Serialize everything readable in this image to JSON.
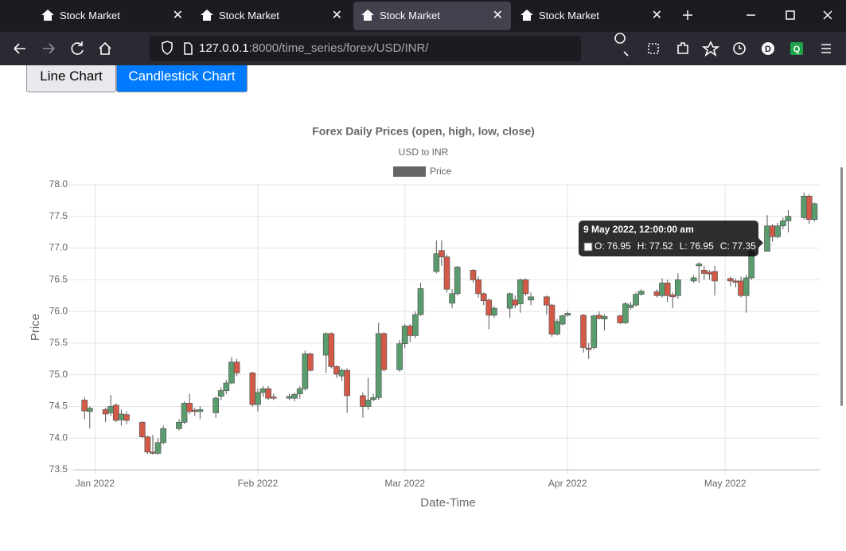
{
  "browser": {
    "tabs": [
      "Stock Market",
      "Stock Market",
      "Stock Market",
      "Stock Market"
    ],
    "url_host": "127.0.0.1",
    "url_rest": ":8000/time_series/forex/USD/INR/",
    "profile": "D",
    "extension": "Q"
  },
  "buttons": [
    "Line Chart",
    "Candlestick Chart"
  ],
  "chart_data": {
    "type": "candlestick",
    "title": "Forex Daily Prices (open, high, low, close)",
    "subtitle": "USD to INR",
    "x_label": "Date-Time",
    "y_label": "Price",
    "up_color": "#5a9c6e",
    "down_color": "#d35a47",
    "grid": true,
    "xlim": [
      "2021-12-28",
      "2022-05-19"
    ],
    "xticks": [
      {
        "value": "2022-01-01",
        "label": "Jan 2022"
      },
      {
        "value": "2022-02-01",
        "label": "Feb 2022"
      },
      {
        "value": "2022-03-01",
        "label": "Mar 2022"
      },
      {
        "value": "2022-04-01",
        "label": "Apr 2022"
      },
      {
        "value": "2022-05-01",
        "label": "May 2022"
      }
    ],
    "ylim": [
      73.5,
      78
    ],
    "yticks": [
      73.5,
      {
        "value": 74,
        "label": "74.0"
      },
      74.5,
      {
        "value": 75,
        "label": "75.0"
      },
      75.5,
      {
        "value": 76,
        "label": "76.0"
      },
      76.5,
      {
        "value": 77,
        "label": "77.0"
      },
      77.5,
      {
        "value": 78,
        "label": "78.0"
      }
    ],
    "x": [
      "2021-12-30",
      "2021-12-31",
      "2022-01-03",
      "2022-01-04",
      "2022-01-05",
      "2022-01-06",
      "2022-01-07",
      "2022-01-10",
      "2022-01-11",
      "2022-01-12",
      "2022-01-13",
      "2022-01-14",
      "2022-01-17",
      "2022-01-18",
      "2022-01-19",
      "2022-01-20",
      "2022-01-21",
      "2022-01-24",
      "2022-01-25",
      "2022-01-26",
      "2022-01-27",
      "2022-01-28",
      "2022-01-31",
      "2022-02-01",
      "2022-02-02",
      "2022-02-03",
      "2022-02-04",
      "2022-02-07",
      "2022-02-08",
      "2022-02-09",
      "2022-02-10",
      "2022-02-11",
      "2022-02-14",
      "2022-02-15",
      "2022-02-16",
      "2022-02-17",
      "2022-02-18",
      "2022-02-21",
      "2022-02-22",
      "2022-02-23",
      "2022-02-24",
      "2022-02-25",
      "2022-02-28",
      "2022-03-01",
      "2022-03-02",
      "2022-03-03",
      "2022-03-04",
      "2022-03-07",
      "2022-03-08",
      "2022-03-09",
      "2022-03-10",
      "2022-03-11",
      "2022-03-14",
      "2022-03-15",
      "2022-03-16",
      "2022-03-17",
      "2022-03-18",
      "2022-03-21",
      "2022-03-22",
      "2022-03-23",
      "2022-03-24",
      "2022-03-25",
      "2022-03-28",
      "2022-03-29",
      "2022-03-30",
      "2022-03-31",
      "2022-04-01",
      "2022-04-04",
      "2022-04-05",
      "2022-04-06",
      "2022-04-07",
      "2022-04-08",
      "2022-04-11",
      "2022-04-12",
      "2022-04-13",
      "2022-04-14",
      "2022-04-15",
      "2022-04-18",
      "2022-04-19",
      "2022-04-20",
      "2022-04-21",
      "2022-04-22",
      "2022-04-25",
      "2022-04-26",
      "2022-04-27",
      "2022-04-28",
      "2022-04-29",
      "2022-05-02",
      "2022-05-03",
      "2022-05-04",
      "2022-05-05",
      "2022-05-06",
      "2022-05-09",
      "2022-05-10",
      "2022-05-11",
      "2022-05-12",
      "2022-05-13",
      "2022-05-16",
      "2022-05-17",
      "2022-05-18"
    ],
    "series": [
      {
        "name": "Price",
        "color": "#666666",
        "open": [
          74.6,
          74.42,
          74.45,
          74.4,
          74.52,
          74.29,
          74.37,
          74.25,
          74.02,
          73.78,
          73.76,
          73.93,
          74.15,
          74.25,
          74.55,
          74.44,
          74.42,
          74.4,
          74.66,
          74.75,
          74.87,
          75.2,
          75.03,
          74.53,
          74.72,
          74.78,
          74.65,
          74.63,
          74.63,
          74.7,
          74.78,
          75.33,
          75.31,
          75.65,
          75.13,
          74.98,
          75.07,
          74.67,
          74.5,
          74.61,
          74.64,
          75.65,
          75.08,
          75.49,
          75.77,
          75.62,
          75.95,
          76.63,
          76.96,
          76.86,
          76.13,
          76.28,
          76.65,
          76.5,
          76.28,
          76.18,
          75.94,
          76.05,
          76.18,
          76.12,
          76.5,
          76.18,
          76.23,
          76.1,
          75.64,
          75.8,
          75.94,
          75.94,
          75.42,
          75.43,
          75.94,
          75.88,
          75.93,
          75.82,
          76.06,
          76.1,
          76.27,
          76.31,
          76.25,
          76.45,
          76.26,
          76.25,
          76.48,
          76.72,
          76.65,
          76.62,
          76.63,
          76.52,
          76.48,
          76.48,
          76.25,
          76.53,
          76.95,
          77.35,
          77.18,
          77.35,
          77.43,
          77.48,
          77.82,
          77.45
        ],
        "high": [
          74.65,
          74.5,
          74.48,
          74.68,
          74.55,
          74.45,
          74.42,
          74.27,
          74.04,
          74.05,
          74.0,
          74.2,
          74.3,
          74.58,
          74.7,
          74.48,
          74.5,
          74.66,
          74.8,
          74.92,
          75.28,
          75.25,
          75.05,
          74.78,
          74.82,
          74.82,
          74.7,
          74.7,
          74.72,
          74.82,
          75.38,
          75.35,
          75.67,
          75.67,
          75.15,
          75.1,
          75.1,
          74.72,
          74.95,
          74.7,
          75.82,
          75.67,
          75.55,
          75.8,
          75.8,
          76.0,
          76.45,
          77.12,
          77.12,
          76.9,
          76.35,
          76.72,
          76.67,
          76.55,
          76.3,
          76.2,
          76.08,
          76.3,
          76.25,
          76.52,
          76.52,
          76.3,
          76.25,
          76.12,
          75.88,
          75.95,
          76.0,
          75.96,
          75.5,
          75.95,
          76.0,
          75.95,
          75.95,
          76.15,
          76.15,
          76.3,
          76.35,
          76.35,
          76.52,
          76.5,
          76.3,
          76.6,
          76.57,
          76.78,
          76.72,
          76.65,
          76.72,
          76.55,
          76.52,
          76.55,
          76.58,
          77.0,
          77.52,
          77.38,
          77.4,
          77.48,
          77.6,
          77.88,
          77.85,
          77.72
        ],
        "low": [
          74.3,
          74.15,
          74.25,
          74.35,
          74.25,
          74.2,
          74.22,
          74.0,
          73.75,
          73.74,
          73.74,
          73.9,
          74.12,
          74.22,
          74.38,
          74.35,
          74.3,
          74.32,
          74.6,
          74.7,
          74.85,
          74.98,
          74.5,
          74.42,
          74.65,
          74.6,
          74.6,
          74.6,
          74.58,
          74.62,
          74.75,
          75.05,
          75.03,
          75.1,
          74.95,
          74.9,
          74.4,
          74.32,
          74.45,
          74.58,
          74.6,
          75.05,
          75.05,
          75.42,
          75.52,
          75.58,
          75.93,
          76.6,
          76.72,
          76.3,
          76.05,
          76.25,
          76.45,
          76.22,
          76.1,
          75.72,
          75.9,
          75.9,
          76.05,
          75.98,
          76.25,
          76.1,
          75.95,
          75.6,
          75.62,
          75.78,
          75.92,
          75.35,
          75.25,
          75.4,
          75.87,
          75.7,
          75.8,
          75.8,
          76.03,
          76.08,
          76.25,
          76.22,
          76.22,
          76.15,
          76.05,
          76.2,
          76.45,
          76.45,
          76.5,
          76.5,
          76.25,
          76.4,
          76.38,
          76.22,
          75.98,
          76.5,
          76.95,
          77.1,
          77.15,
          77.3,
          77.25,
          77.45,
          77.38,
          77.42
        ],
        "close": [
          74.43,
          74.47,
          74.38,
          74.5,
          74.28,
          74.38,
          74.28,
          74.02,
          73.78,
          73.76,
          73.93,
          74.15,
          74.25,
          74.55,
          74.42,
          74.42,
          74.45,
          74.63,
          74.75,
          74.87,
          75.2,
          75.03,
          74.53,
          74.72,
          74.78,
          74.63,
          74.63,
          74.66,
          74.69,
          74.78,
          75.33,
          75.07,
          75.65,
          75.13,
          75.01,
          75.07,
          74.67,
          74.5,
          74.6,
          74.64,
          75.65,
          75.08,
          75.49,
          75.77,
          75.62,
          75.95,
          76.36,
          76.91,
          76.86,
          76.35,
          76.28,
          76.7,
          76.5,
          76.28,
          76.17,
          75.94,
          76.05,
          76.28,
          76.1,
          76.5,
          76.28,
          76.23,
          76.1,
          75.64,
          75.84,
          75.93,
          75.97,
          75.43,
          75.4,
          75.93,
          75.89,
          75.92,
          75.82,
          76.12,
          76.1,
          76.27,
          76.32,
          76.25,
          76.45,
          76.25,
          76.23,
          76.5,
          76.53,
          76.75,
          76.6,
          76.59,
          76.48,
          76.48,
          76.46,
          76.25,
          76.53,
          76.95,
          77.35,
          77.18,
          77.35,
          77.43,
          77.5,
          77.82,
          77.45,
          77.7
        ]
      }
    ],
    "tooltip": {
      "title": "9 May 2022, 12:00:00 am",
      "labels": [
        "O:",
        "H:",
        "L:",
        "C:"
      ]
    }
  }
}
